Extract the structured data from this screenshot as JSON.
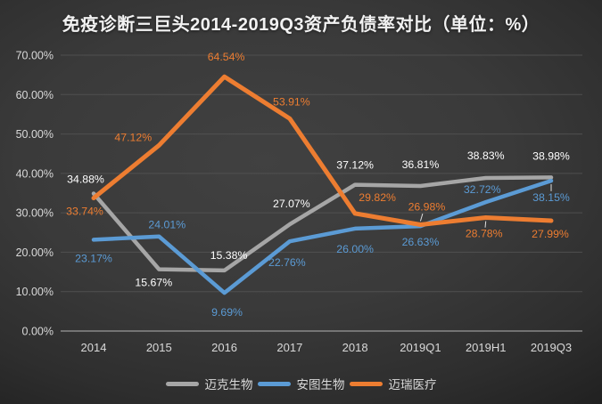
{
  "title": "免疫诊断三巨头2014-2019Q3资产负债率对比（单位：%）",
  "chart_data": {
    "type": "line",
    "title": "免疫诊断三巨头2014-2019Q3资产负债率对比（单位：%）",
    "categories": [
      "2014",
      "2015",
      "2016",
      "2017",
      "2018",
      "2019Q1",
      "2019H1",
      "2019Q3"
    ],
    "series": [
      {
        "name": "迈克生物",
        "color": "#A6A6A6",
        "label_color": "#FFFFFF",
        "values": [
          34.88,
          15.67,
          15.38,
          27.07,
          37.12,
          36.81,
          38.83,
          38.98
        ],
        "labels": [
          "34.88%",
          "15.67%",
          "15.38%",
          "27.07%",
          "37.12%",
          "36.81%",
          "38.83%",
          "38.98%"
        ],
        "label_offsets": [
          [
            -9,
            -16,
            0
          ],
          [
            -6,
            15,
            0
          ],
          [
            5,
            -17,
            0
          ],
          [
            2,
            -23,
            0
          ],
          [
            0,
            -22,
            0
          ],
          [
            0,
            -24,
            0
          ],
          [
            0,
            -25,
            0
          ],
          [
            0,
            -24,
            0
          ]
        ]
      },
      {
        "name": "安图生物",
        "color": "#5B9BD5",
        "label_color": "#5B9BD5",
        "values": [
          23.17,
          24.01,
          9.69,
          22.76,
          26.0,
          26.63,
          32.72,
          38.15
        ],
        "labels": [
          "23.17%",
          "24.01%",
          "9.69%",
          "22.76%",
          "26.00%",
          "26.63%",
          "32.72%",
          "38.15%"
        ],
        "label_offsets": [
          [
            0,
            21,
            0
          ],
          [
            9,
            -13,
            0
          ],
          [
            3,
            22,
            0
          ],
          [
            -3,
            24,
            0
          ],
          [
            0,
            23,
            0
          ],
          [
            0,
            18,
            0
          ],
          [
            -4,
            -14,
            0
          ],
          [
            0,
            19,
            1
          ]
        ]
      },
      {
        "name": "迈瑞医疗",
        "color": "#ED7D31",
        "label_color": "#ED7D31",
        "values": [
          33.74,
          47.12,
          64.54,
          53.91,
          29.82,
          26.98,
          28.78,
          27.99
        ],
        "labels": [
          "33.74%",
          "47.12%",
          "64.54%",
          "53.91%",
          "29.82%",
          "26.98%",
          "28.78%",
          "27.99%"
        ],
        "label_offsets": [
          [
            -10,
            15,
            0
          ],
          [
            -29,
            -9,
            0
          ],
          [
            2,
            -22,
            0
          ],
          [
            2,
            -19,
            0
          ],
          [
            25,
            -18,
            0
          ],
          [
            7,
            -20,
            1
          ],
          [
            -2,
            18,
            1
          ],
          [
            -1,
            15,
            0
          ]
        ]
      }
    ],
    "ylim": [
      0,
      70
    ],
    "ytick_step": 10,
    "ytick_labels": [
      "0.00%",
      "10.00%",
      "20.00%",
      "30.00%",
      "40.00%",
      "50.00%",
      "60.00%",
      "70.00%"
    ],
    "grid": true,
    "legend_position": "bottom",
    "axis_text_color": "#D9D9D9",
    "gridline_color": "#565656",
    "axis_line_color": "#A0A0A0",
    "leader_line_color": "#E0E0E0"
  }
}
